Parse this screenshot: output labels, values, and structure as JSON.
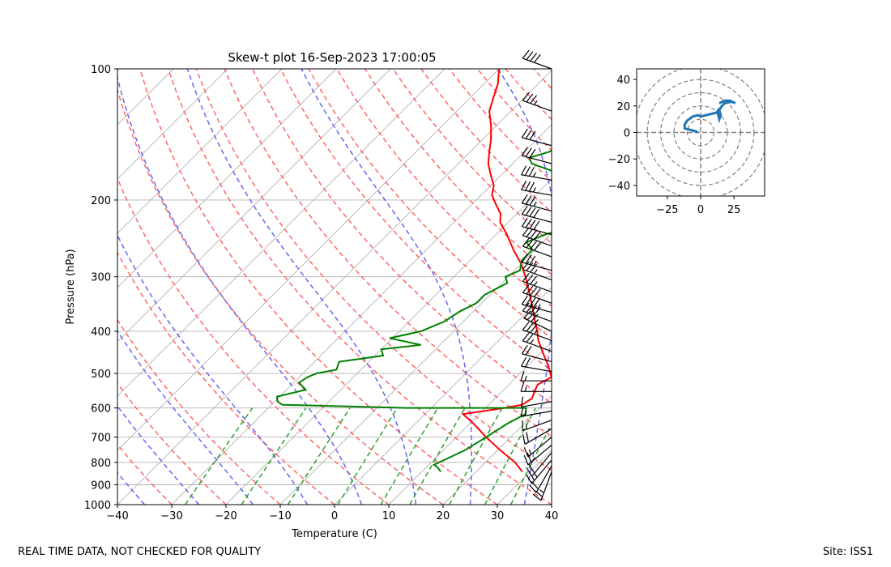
{
  "chart_data": [
    {
      "type": "line",
      "subtype": "skew-t",
      "title": "Skew-t plot 16-Sep-2023 17:00:05",
      "xlabel": "Temperature (C)",
      "ylabel": "Pressure (hPa)",
      "xlim": [
        -40,
        40
      ],
      "ylim": [
        1000,
        100
      ],
      "yscale": "log",
      "x_ticks": [
        -40,
        -30,
        -20,
        -10,
        0,
        10,
        20,
        30,
        40
      ],
      "y_ticks": [
        100,
        200,
        300,
        400,
        500,
        600,
        700,
        800,
        900,
        1000
      ],
      "colors": {
        "temperature": "#ff0000",
        "dewpoint": "#008000",
        "dry_adiabats": "#ff6666",
        "moist_adiabats": "#6666ee",
        "mixing_ratio": "#2ca02c",
        "isotherms": "#b0b0b0"
      },
      "series": [
        {
          "pressure": [
            840,
            800,
            750,
            700,
            650,
            620,
            600,
            590,
            570,
            550,
            530,
            510,
            500,
            480,
            450,
            420,
            400,
            380,
            350,
            320,
            300,
            280,
            260,
            240,
            225,
            215,
            205,
            195,
            185,
            175,
            165,
            155,
            145,
            135,
            125,
            115,
            108,
            100
          ],
          "values": [
            28.5,
            25.5,
            20.5,
            15.5,
            10.5,
            7.0,
            13.5,
            16.2,
            16.8,
            16.0,
            15.3,
            16.5,
            15.6,
            13.8,
            10.6,
            7.3,
            5.4,
            3.2,
            -0.2,
            -4.0,
            -6.8,
            -10.0,
            -14.0,
            -18.0,
            -21.5,
            -23.0,
            -25.5,
            -28.0,
            -29.5,
            -32.0,
            -34.5,
            -36.5,
            -38.5,
            -41.0,
            -44.0,
            -46.0,
            -47.5,
            -50.0
          ]
        },
        {
          "pressure": [
            840,
            820,
            810,
            780,
            750,
            700,
            650,
            620,
            600,
            600,
            590,
            580,
            565,
            545,
            525,
            510,
            500,
            490,
            470,
            455,
            440,
            430,
            415,
            400,
            380,
            360,
            345,
            330,
            310,
            300,
            290,
            275,
            260,
            250,
            240,
            230,
            225,
            218,
            210,
            200,
            190,
            180,
            172,
            165,
            160,
            155,
            150,
            140,
            130,
            120,
            110,
            105,
            100
          ],
          "values": [
            13.5,
            12.0,
            11.0,
            12.5,
            14.0,
            15.5,
            17.0,
            18.5,
            17.5,
            -4.5,
            -28.0,
            -29.5,
            -30.5,
            -26.5,
            -29.0,
            -28.5,
            -27.5,
            -24.5,
            -25.5,
            -18.5,
            -20.0,
            -13.5,
            -20.5,
            -16.0,
            -13.5,
            -12.5,
            -11.0,
            -11.0,
            -9.0,
            -10.5,
            -9.0,
            -10.5,
            -10.5,
            -13.0,
            -11.0,
            -7.0,
            -2.5,
            -2.0,
            -6.0,
            -13.0,
            -17.5,
            -17.0,
            -21.0,
            -26.5,
            -28.0,
            -25.5,
            -24.0,
            -25.0,
            -25.5,
            -25.5,
            -22.5,
            -20.5,
            -17.5
          ]
        }
      ],
      "wind_barbs": {
        "pressure": [
          100,
          125,
          150,
          165,
          180,
          195,
          212,
          225,
          240,
          255,
          270,
          290,
          305,
          325,
          345,
          362,
          380,
          400,
          420,
          445,
          470,
          495,
          520,
          550,
          580,
          610,
          640,
          670,
          700,
          730,
          760,
          790,
          815,
          840
        ],
        "speed_kt": [
          40,
          35,
          30,
          30,
          35,
          35,
          35,
          40,
          40,
          40,
          40,
          35,
          35,
          35,
          40,
          45,
          40,
          35,
          35,
          25,
          20,
          20,
          15,
          15,
          10,
          15,
          15,
          20,
          15,
          20,
          20,
          25,
          20,
          25
        ],
        "direction_deg": [
          290,
          290,
          285,
          285,
          280,
          280,
          285,
          285,
          285,
          290,
          290,
          285,
          290,
          290,
          290,
          285,
          290,
          295,
          290,
          290,
          285,
          280,
          270,
          270,
          260,
          260,
          250,
          240,
          230,
          230,
          220,
          220,
          210,
          200
        ]
      }
    },
    {
      "type": "line",
      "subtype": "hodograph",
      "xlim": [
        -48,
        48
      ],
      "ylim": [
        -48,
        48
      ],
      "x_ticks": [
        -25,
        0,
        25
      ],
      "y_ticks": [
        -40,
        -20,
        0,
        20,
        40
      ],
      "ring_spacing": 10,
      "grid": true,
      "color": "#1f77b4",
      "x": [
        -2,
        -4,
        -8,
        -12,
        -12,
        -10,
        -6,
        -2,
        0,
        4,
        8,
        12,
        14,
        13,
        14,
        15,
        14,
        16,
        18,
        22,
        24,
        26,
        22,
        18,
        14
      ],
      "y": [
        0,
        1,
        2,
        3,
        6,
        9,
        12,
        13,
        12,
        13,
        14,
        15,
        18,
        14,
        10,
        13,
        17,
        20,
        22,
        23,
        23,
        22,
        24,
        24,
        22
      ]
    }
  ],
  "footer": {
    "left": "REAL TIME DATA, NOT CHECKED FOR QUALITY",
    "right": "Site: ISS1"
  }
}
